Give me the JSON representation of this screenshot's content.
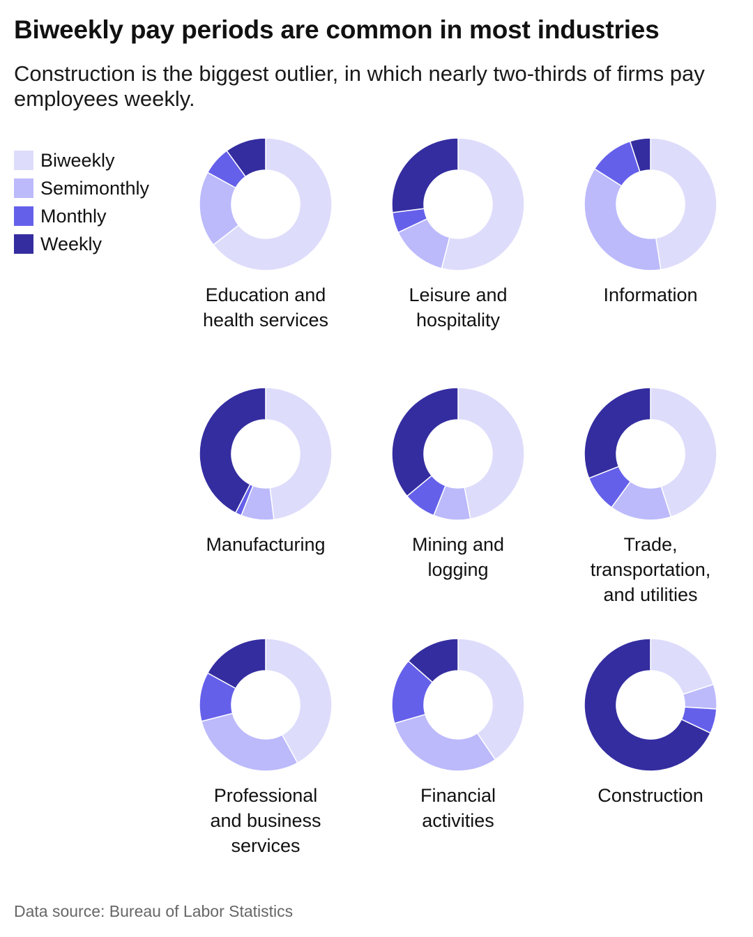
{
  "header": {
    "title": "Biweekly pay periods are common in most industries",
    "subtitle": "Construction is the biggest outlier, in which nearly two-thirds of firms pay employees weekly."
  },
  "legend": [
    {
      "label": "Biweekly",
      "color": "#dddcfb"
    },
    {
      "label": "Semimonthly",
      "color": "#bcbafb"
    },
    {
      "label": "Monthly",
      "color": "#6560ea"
    },
    {
      "label": "Weekly",
      "color": "#342da0"
    }
  ],
  "footer": {
    "source": "Data source: Bureau of Labor Statistics"
  },
  "chart_data": {
    "type": "pie",
    "style": "donut small multiples",
    "series_names": [
      "Biweekly",
      "Semimonthly",
      "Monthly",
      "Weekly"
    ],
    "colors": [
      "#dddcfb",
      "#bcbafb",
      "#6560ea",
      "#342da0"
    ],
    "slice_border_color": "#ffffff",
    "legend_position": "top-left",
    "industries": [
      {
        "name": "Education and health services",
        "label_lines": [
          "Education and",
          "health services"
        ],
        "values": [
          64.5,
          18.5,
          7,
          10
        ]
      },
      {
        "name": "Leisure and hospitality",
        "label_lines": [
          "Leisure and",
          "hospitality"
        ],
        "values": [
          54,
          14,
          5,
          27
        ]
      },
      {
        "name": "Information",
        "label_lines": [
          "Information"
        ],
        "values": [
          47.5,
          36.5,
          11,
          5
        ]
      },
      {
        "name": "Manufacturing",
        "label_lines": [
          "Manufacturing"
        ],
        "values": [
          48,
          8,
          1.5,
          42.5
        ]
      },
      {
        "name": "Mining and logging",
        "label_lines": [
          "Mining and",
          "logging"
        ],
        "values": [
          47,
          9,
          8,
          36
        ]
      },
      {
        "name": "Trade, transportation, and utilities",
        "label_lines": [
          "Trade,",
          "transportation,",
          "and utilities"
        ],
        "values": [
          45,
          15,
          9,
          31
        ]
      },
      {
        "name": "Professional and business services",
        "label_lines": [
          "Professional",
          "and business",
          "services"
        ],
        "values": [
          42,
          29,
          12,
          17
        ]
      },
      {
        "name": "Financial activities",
        "label_lines": [
          "Financial",
          "activities"
        ],
        "values": [
          40.5,
          30,
          16,
          13.5
        ]
      },
      {
        "name": "Construction",
        "label_lines": [
          "Construction"
        ],
        "values": [
          20,
          6,
          6,
          68
        ]
      }
    ]
  }
}
